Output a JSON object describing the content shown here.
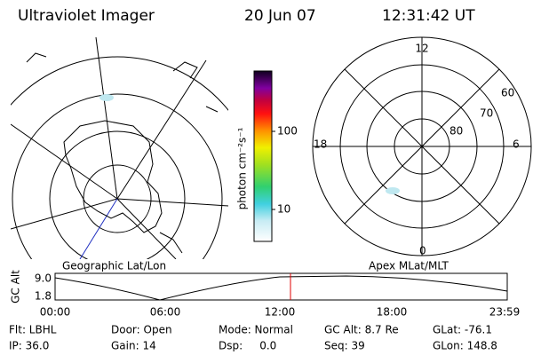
{
  "header": {
    "title": "Ultraviolet Imager",
    "date": "20 Jun 07",
    "time": "12:31:42 UT"
  },
  "geographic_panel": {
    "label": "Geographic Lat/Lon"
  },
  "colorbar": {
    "label": "photon cm⁻²s⁻¹",
    "ticks": [
      "100",
      "10"
    ]
  },
  "magnetic_panel": {
    "label": "Apex MLat/MLT",
    "mlt_labels": [
      "12",
      "18",
      "6",
      "0"
    ],
    "mlat_labels": [
      "60",
      "70",
      "80"
    ]
  },
  "altitude_plot": {
    "axis_label": "GC Alt",
    "yticks": [
      "9.0",
      "1.8"
    ],
    "xticks": [
      "00:00",
      "06:00",
      "12:00",
      "18:00",
      "23:59"
    ]
  },
  "footer": {
    "rows": [
      [
        "Flt: LBHL",
        "Door: Open",
        "Mode: Normal",
        "GC Alt: 8.7 Re",
        "GLat: -76.1"
      ],
      [
        "IP: 36.0",
        "Gain: 14",
        "Dsp:     0.0",
        "Seq: 39",
        "GLon: 148.8"
      ]
    ]
  }
}
